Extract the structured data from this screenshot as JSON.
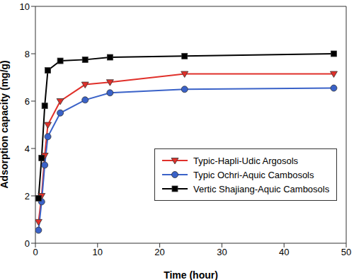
{
  "chart_data": {
    "type": "line",
    "x_label": "Time (hour)",
    "y_label": "Adsorption capacity (mg/g)",
    "x": [
      0.5,
      1,
      1.5,
      2,
      4,
      8,
      12,
      24,
      48
    ],
    "series": [
      {
        "name": "Typic-Hapli-Udic Argosols",
        "color": "#e0302a",
        "marker": "triangle-down",
        "values": [
          0.9,
          2.0,
          3.7,
          5.0,
          6.0,
          6.7,
          6.8,
          7.15,
          7.15
        ]
      },
      {
        "name": "Typic Ochri-Aquic Cambosols",
        "color": "#3a62c8",
        "marker": "circle",
        "values": [
          0.55,
          1.75,
          3.3,
          4.5,
          5.5,
          6.05,
          6.35,
          6.5,
          6.55
        ]
      },
      {
        "name": "Vertic Shajiang-Aquic Cambosols",
        "color": "#000000",
        "marker": "square",
        "values": [
          1.9,
          3.6,
          5.8,
          7.3,
          7.7,
          7.75,
          7.85,
          7.9,
          8.0
        ]
      }
    ],
    "xlim": [
      0,
      50
    ],
    "xticks": [
      0,
      10,
      20,
      30,
      40,
      50
    ],
    "ylim": [
      0,
      10
    ],
    "yticks": [
      0,
      2,
      4,
      6,
      8,
      10
    ],
    "grid": false,
    "legend": "right"
  }
}
